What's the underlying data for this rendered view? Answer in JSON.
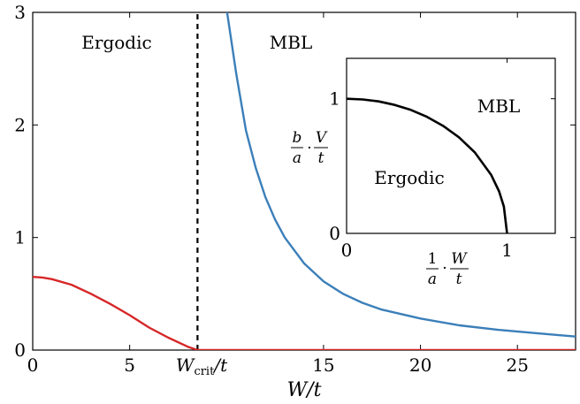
{
  "chart_data": [
    {
      "type": "line",
      "xlabel": "W/t",
      "ylabel": "",
      "xlim": [
        0,
        28
      ],
      "ylim": [
        0,
        3
      ],
      "x_ticks": [
        0,
        5,
        15,
        20,
        25
      ],
      "y_ticks": [
        0,
        1,
        2,
        3
      ],
      "critical_tick": {
        "x": 8.5,
        "label_main": "W",
        "label_sub": "crit",
        "label_tail": "/t"
      },
      "region_labels": {
        "left": "Ergodic",
        "right": "MBL"
      },
      "vline": {
        "x": 8.5,
        "style": "dashed",
        "color": "#000000"
      },
      "grid": false,
      "series": [
        {
          "color": "#3b7fb9",
          "x": [
            10.0,
            10.5,
            11.0,
            11.5,
            12.0,
            12.5,
            13.0,
            14.0,
            15.0,
            16.0,
            17.0,
            18.0,
            20.0,
            22.0,
            24.0,
            26.0,
            28.0
          ],
          "y": [
            3.03,
            2.45,
            1.95,
            1.62,
            1.36,
            1.16,
            1.0,
            0.77,
            0.61,
            0.5,
            0.42,
            0.36,
            0.28,
            0.22,
            0.18,
            0.15,
            0.12
          ]
        },
        {
          "color": "#d62728",
          "x": [
            0,
            0.5,
            1.0,
            2.0,
            3.0,
            4.0,
            5.0,
            6.0,
            7.0,
            8.0,
            8.5,
            9.0,
            12.0,
            16.0,
            20.0,
            24.0,
            28.0
          ],
          "y": [
            0.65,
            0.645,
            0.63,
            0.58,
            0.5,
            0.41,
            0.31,
            0.2,
            0.11,
            0.03,
            0.0,
            0.0,
            0.0,
            0.0,
            0.0,
            0.0,
            0.0
          ]
        }
      ]
    },
    {
      "type": "line",
      "xlabel_fraction": {
        "num": "1",
        "den": "a",
        "factor_num": "W",
        "factor_den": "t"
      },
      "ylabel_fraction": {
        "num": "b",
        "den": "a",
        "factor_num": "V",
        "factor_den": "t"
      },
      "xlim": [
        0,
        1.3
      ],
      "ylim": [
        0,
        1.3
      ],
      "x_ticks": [
        0,
        1
      ],
      "y_ticks": [
        0,
        1
      ],
      "region_labels": {
        "inside": "Ergodic",
        "outside": "MBL"
      },
      "series": [
        {
          "color": "#000000",
          "x": [
            0,
            0.1,
            0.2,
            0.3,
            0.4,
            0.5,
            0.6,
            0.7,
            0.8,
            0.9,
            0.95,
            0.98,
            1.0
          ],
          "y": [
            1.0,
            0.995,
            0.98,
            0.954,
            0.917,
            0.866,
            0.8,
            0.714,
            0.6,
            0.436,
            0.312,
            0.199,
            0.0
          ]
        }
      ]
    }
  ]
}
